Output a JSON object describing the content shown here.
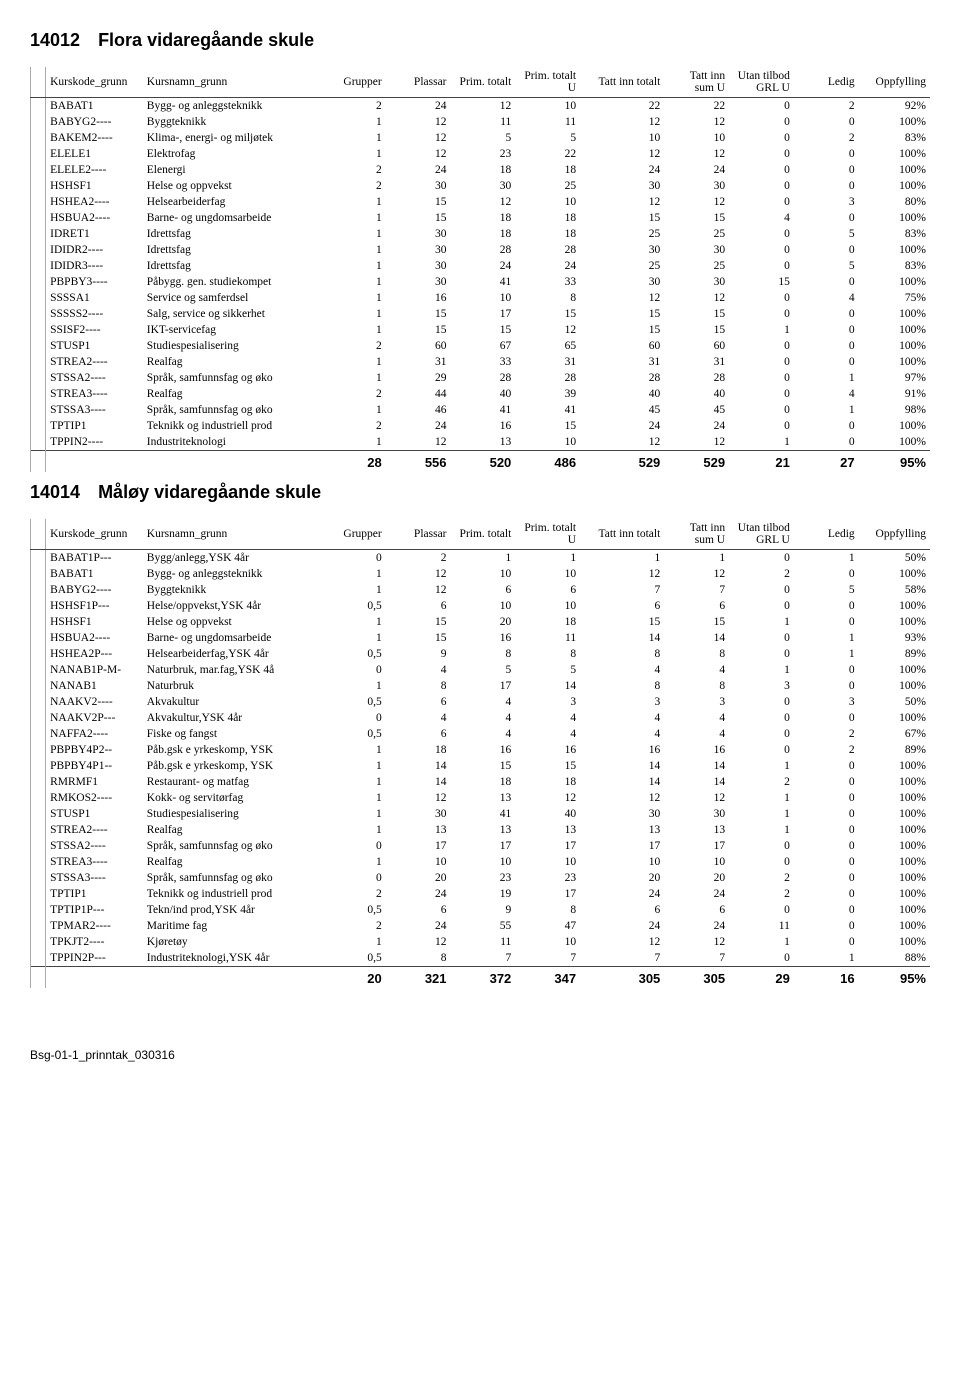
{
  "headers": {
    "code": "Kurskode_grunn",
    "name": "Kursnamn_grunn",
    "grupper": "Grupper",
    "plassar": "Plassar",
    "prim_totalt": "Prim. totalt",
    "prim_totalt_u": "Prim. totalt U",
    "tatt_inn_totalt": "Tatt inn totalt",
    "tatt_inn_sum_u": "Tatt inn sum U",
    "utan_tilbod": "Utan tilbod GRL U",
    "ledig": "Ledig",
    "oppfylling": "Oppfylling"
  },
  "schools": [
    {
      "code": "14012",
      "name": "Flora vidaregåande skule",
      "rows": [
        [
          "BABAT1",
          "Bygg- og anleggsteknikk",
          "2",
          "24",
          "12",
          "10",
          "22",
          "22",
          "0",
          "2",
          "92%"
        ],
        [
          "BABYG2----",
          "Byggteknikk",
          "1",
          "12",
          "11",
          "11",
          "12",
          "12",
          "0",
          "0",
          "100%"
        ],
        [
          "BAKEM2----",
          "Klima-, energi- og miljøtek",
          "1",
          "12",
          "5",
          "5",
          "10",
          "10",
          "0",
          "2",
          "83%"
        ],
        [
          "ELELE1",
          "Elektrofag",
          "1",
          "12",
          "23",
          "22",
          "12",
          "12",
          "0",
          "0",
          "100%"
        ],
        [
          "ELELE2----",
          "Elenergi",
          "2",
          "24",
          "18",
          "18",
          "24",
          "24",
          "0",
          "0",
          "100%"
        ],
        [
          "HSHSF1",
          "Helse og oppvekst",
          "2",
          "30",
          "30",
          "25",
          "30",
          "30",
          "0",
          "0",
          "100%"
        ],
        [
          "HSHEA2----",
          "Helsearbeiderfag",
          "1",
          "15",
          "12",
          "10",
          "12",
          "12",
          "0",
          "3",
          "80%"
        ],
        [
          "HSBUA2----",
          "Barne- og ungdomsarbeide",
          "1",
          "15",
          "18",
          "18",
          "15",
          "15",
          "4",
          "0",
          "100%"
        ],
        [
          "IDRET1",
          "Idrettsfag",
          "1",
          "30",
          "18",
          "18",
          "25",
          "25",
          "0",
          "5",
          "83%"
        ],
        [
          "IDIDR2----",
          "Idrettsfag",
          "1",
          "30",
          "28",
          "28",
          "30",
          "30",
          "0",
          "0",
          "100%"
        ],
        [
          "IDIDR3----",
          "Idrettsfag",
          "1",
          "30",
          "24",
          "24",
          "25",
          "25",
          "0",
          "5",
          "83%"
        ],
        [
          "PBPBY3----",
          "Påbygg. gen. studiekompet",
          "1",
          "30",
          "41",
          "33",
          "30",
          "30",
          "15",
          "0",
          "100%"
        ],
        [
          "SSSSA1",
          "Service og samferdsel",
          "1",
          "16",
          "10",
          "8",
          "12",
          "12",
          "0",
          "4",
          "75%"
        ],
        [
          "SSSSS2----",
          "Salg, service og sikkerhet",
          "1",
          "15",
          "17",
          "15",
          "15",
          "15",
          "0",
          "0",
          "100%"
        ],
        [
          "SSISF2----",
          "IKT-servicefag",
          "1",
          "15",
          "15",
          "12",
          "15",
          "15",
          "1",
          "0",
          "100%"
        ],
        [
          "STUSP1",
          "Studiespesialisering",
          "2",
          "60",
          "67",
          "65",
          "60",
          "60",
          "0",
          "0",
          "100%"
        ],
        [
          "STREA2----",
          "Realfag",
          "1",
          "31",
          "33",
          "31",
          "31",
          "31",
          "0",
          "0",
          "100%"
        ],
        [
          "STSSA2----",
          "Språk, samfunnsfag og øko",
          "1",
          "29",
          "28",
          "28",
          "28",
          "28",
          "0",
          "1",
          "97%"
        ],
        [
          "STREA3----",
          "Realfag",
          "2",
          "44",
          "40",
          "39",
          "40",
          "40",
          "0",
          "4",
          "91%"
        ],
        [
          "STSSA3----",
          "Språk, samfunnsfag og øko",
          "1",
          "46",
          "41",
          "41",
          "45",
          "45",
          "0",
          "1",
          "98%"
        ],
        [
          "TPTIP1",
          "Teknikk og industriell prod",
          "2",
          "24",
          "16",
          "15",
          "24",
          "24",
          "0",
          "0",
          "100%"
        ],
        [
          "TPPIN2----",
          "Industriteknologi",
          "1",
          "12",
          "13",
          "10",
          "12",
          "12",
          "1",
          "0",
          "100%"
        ]
      ],
      "totals": [
        "",
        "",
        "28",
        "556",
        "520",
        "486",
        "529",
        "529",
        "21",
        "27",
        "95%"
      ]
    },
    {
      "code": "14014",
      "name": "Måløy vidaregåande skule",
      "rows": [
        [
          "BABAT1P---",
          "Bygg/anlegg,YSK 4år",
          "0",
          "2",
          "1",
          "1",
          "1",
          "1",
          "0",
          "1",
          "50%"
        ],
        [
          "BABAT1",
          "Bygg- og anleggsteknikk",
          "1",
          "12",
          "10",
          "10",
          "12",
          "12",
          "2",
          "0",
          "100%"
        ],
        [
          "BABYG2----",
          "Byggteknikk",
          "1",
          "12",
          "6",
          "6",
          "7",
          "7",
          "0",
          "5",
          "58%"
        ],
        [
          "HSHSF1P---",
          "Helse/oppvekst,YSK 4år",
          "0,5",
          "6",
          "10",
          "10",
          "6",
          "6",
          "0",
          "0",
          "100%"
        ],
        [
          "HSHSF1",
          "Helse og oppvekst",
          "1",
          "15",
          "20",
          "18",
          "15",
          "15",
          "1",
          "0",
          "100%"
        ],
        [
          "HSBUA2----",
          "Barne- og ungdomsarbeide",
          "1",
          "15",
          "16",
          "11",
          "14",
          "14",
          "0",
          "1",
          "93%"
        ],
        [
          "HSHEA2P---",
          "Helsearbeiderfag,YSK 4år",
          "0,5",
          "9",
          "8",
          "8",
          "8",
          "8",
          "0",
          "1",
          "89%"
        ],
        [
          "NANAB1P-M-",
          "Naturbruk, mar.fag,YSK 4å",
          "0",
          "4",
          "5",
          "5",
          "4",
          "4",
          "1",
          "0",
          "100%"
        ],
        [
          "NANAB1",
          "Naturbruk",
          "1",
          "8",
          "17",
          "14",
          "8",
          "8",
          "3",
          "0",
          "100%"
        ],
        [
          "NAAKV2----",
          "Akvakultur",
          "0,5",
          "6",
          "4",
          "3",
          "3",
          "3",
          "0",
          "3",
          "50%"
        ],
        [
          "NAAKV2P---",
          "Akvakultur,YSK 4år",
          "0",
          "4",
          "4",
          "4",
          "4",
          "4",
          "0",
          "0",
          "100%"
        ],
        [
          "NAFFA2----",
          "Fiske og fangst",
          "0,5",
          "6",
          "4",
          "4",
          "4",
          "4",
          "0",
          "2",
          "67%"
        ],
        [
          "PBPBY4P2--",
          "Påb.gsk e yrkeskomp, YSK",
          "1",
          "18",
          "16",
          "16",
          "16",
          "16",
          "0",
          "2",
          "89%"
        ],
        [
          "PBPBY4P1--",
          "Påb.gsk e yrkeskomp, YSK",
          "1",
          "14",
          "15",
          "15",
          "14",
          "14",
          "1",
          "0",
          "100%"
        ],
        [
          "RMRMF1",
          "Restaurant- og matfag",
          "1",
          "14",
          "18",
          "18",
          "14",
          "14",
          "2",
          "0",
          "100%"
        ],
        [
          "RMKOS2----",
          "Kokk- og servitørfag",
          "1",
          "12",
          "13",
          "12",
          "12",
          "12",
          "1",
          "0",
          "100%"
        ],
        [
          "STUSP1",
          "Studiespesialisering",
          "1",
          "30",
          "41",
          "40",
          "30",
          "30",
          "1",
          "0",
          "100%"
        ],
        [
          "STREA2----",
          "Realfag",
          "1",
          "13",
          "13",
          "13",
          "13",
          "13",
          "1",
          "0",
          "100%"
        ],
        [
          "STSSA2----",
          "Språk, samfunnsfag og øko",
          "0",
          "17",
          "17",
          "17",
          "17",
          "17",
          "0",
          "0",
          "100%"
        ],
        [
          "STREA3----",
          "Realfag",
          "1",
          "10",
          "10",
          "10",
          "10",
          "10",
          "0",
          "0",
          "100%"
        ],
        [
          "STSSA3----",
          "Språk, samfunnsfag og øko",
          "0",
          "20",
          "23",
          "23",
          "20",
          "20",
          "2",
          "0",
          "100%"
        ],
        [
          "TPTIP1",
          "Teknikk og industriell prod",
          "2",
          "24",
          "19",
          "17",
          "24",
          "24",
          "2",
          "0",
          "100%"
        ],
        [
          "TPTIP1P---",
          "Tekn/ind prod,YSK 4år",
          "0,5",
          "6",
          "9",
          "8",
          "6",
          "6",
          "0",
          "0",
          "100%"
        ],
        [
          "TPMAR2----",
          "Maritime fag",
          "2",
          "24",
          "55",
          "47",
          "24",
          "24",
          "11",
          "0",
          "100%"
        ],
        [
          "TPKJT2----",
          "Kjøretøy",
          "1",
          "12",
          "11",
          "10",
          "12",
          "12",
          "1",
          "0",
          "100%"
        ],
        [
          "TPPIN2P---",
          "Industriteknologi,YSK 4år",
          "0,5",
          "8",
          "7",
          "7",
          "7",
          "7",
          "0",
          "1",
          "88%"
        ]
      ],
      "totals": [
        "",
        "",
        "20",
        "321",
        "372",
        "347",
        "305",
        "305",
        "29",
        "16",
        "95%"
      ]
    }
  ],
  "footer": "Bsg-01-1_prinntak_030316"
}
